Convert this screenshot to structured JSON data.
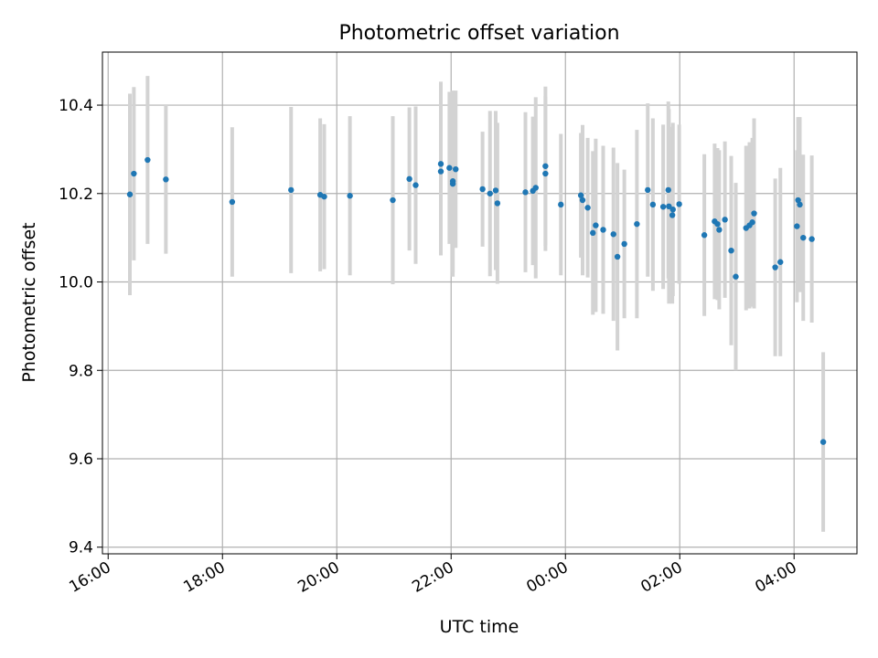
{
  "chart_data": {
    "type": "scatter",
    "title": "Photometric offset variation",
    "xlabel": "UTC time",
    "ylabel": "Photometric offset",
    "x_unit": "hours",
    "xlim": [
      -8.1,
      5.1
    ],
    "ylim": [
      9.385,
      10.52
    ],
    "xticks": [
      {
        "value": -8,
        "label": "16:00"
      },
      {
        "value": -6,
        "label": "18:00"
      },
      {
        "value": -4,
        "label": "20:00"
      },
      {
        "value": -2,
        "label": "22:00"
      },
      {
        "value": 0,
        "label": "00:00"
      },
      {
        "value": 2,
        "label": "02:00"
      },
      {
        "value": 4,
        "label": "04:00"
      }
    ],
    "yticks": [
      {
        "value": 9.4,
        "label": "9.4"
      },
      {
        "value": 9.6,
        "label": "9.6"
      },
      {
        "value": 9.8,
        "label": "9.8"
      },
      {
        "value": 10.0,
        "label": "10.0"
      },
      {
        "value": 10.2,
        "label": "10.2"
      },
      {
        "value": 10.4,
        "label": "10.4"
      }
    ],
    "grid": true,
    "colors": {
      "point": "#1f77b4",
      "errorbar": "#d3d3d3",
      "grid": "#b0b0b0"
    },
    "points": [
      {
        "x": -7.62,
        "y": 10.198,
        "err": 0.228
      },
      {
        "x": -7.55,
        "y": 10.245,
        "err": 0.196
      },
      {
        "x": -7.31,
        "y": 10.276,
        "err": 0.19
      },
      {
        "x": -6.99,
        "y": 10.232,
        "err": 0.168
      },
      {
        "x": -5.83,
        "y": 10.181,
        "err": 0.169
      },
      {
        "x": -4.8,
        "y": 10.208,
        "err": 0.188
      },
      {
        "x": -4.29,
        "y": 10.197,
        "err": 0.173
      },
      {
        "x": -4.22,
        "y": 10.193,
        "err": 0.164
      },
      {
        "x": -3.77,
        "y": 10.195,
        "err": 0.18
      },
      {
        "x": -3.02,
        "y": 10.185,
        "err": 0.19
      },
      {
        "x": -2.73,
        "y": 10.233,
        "err": 0.162
      },
      {
        "x": -2.62,
        "y": 10.219,
        "err": 0.178
      },
      {
        "x": -2.18,
        "y": 10.267,
        "err": 0.186
      },
      {
        "x": -2.18,
        "y": 10.25,
        "err": 0.19
      },
      {
        "x": -2.03,
        "y": 10.258,
        "err": 0.172
      },
      {
        "x": -1.97,
        "y": 10.228,
        "err": 0.205
      },
      {
        "x": -1.97,
        "y": 10.222,
        "err": 0.21
      },
      {
        "x": -1.92,
        "y": 10.255,
        "err": 0.178
      },
      {
        "x": -1.45,
        "y": 10.21,
        "err": 0.13
      },
      {
        "x": -1.32,
        "y": 10.2,
        "err": 0.187
      },
      {
        "x": -1.22,
        "y": 10.207,
        "err": 0.18
      },
      {
        "x": -1.19,
        "y": 10.178,
        "err": 0.182
      },
      {
        "x": -0.7,
        "y": 10.203,
        "err": 0.181
      },
      {
        "x": -0.57,
        "y": 10.206,
        "err": 0.168
      },
      {
        "x": -0.52,
        "y": 10.213,
        "err": 0.205
      },
      {
        "x": -0.35,
        "y": 10.262,
        "err": 0.18
      },
      {
        "x": -0.35,
        "y": 10.245,
        "err": 0.175
      },
      {
        "x": -0.08,
        "y": 10.175,
        "err": 0.16
      },
      {
        "x": 0.27,
        "y": 10.196,
        "err": 0.141
      },
      {
        "x": 0.3,
        "y": 10.185,
        "err": 0.17
      },
      {
        "x": 0.39,
        "y": 10.168,
        "err": 0.158
      },
      {
        "x": 0.48,
        "y": 10.111,
        "err": 0.185
      },
      {
        "x": 0.53,
        "y": 10.128,
        "err": 0.196
      },
      {
        "x": 0.66,
        "y": 10.118,
        "err": 0.19
      },
      {
        "x": 0.84,
        "y": 10.108,
        "err": 0.196
      },
      {
        "x": 0.91,
        "y": 10.057,
        "err": 0.212
      },
      {
        "x": 1.03,
        "y": 10.086,
        "err": 0.168
      },
      {
        "x": 1.25,
        "y": 10.131,
        "err": 0.213
      },
      {
        "x": 1.44,
        "y": 10.208,
        "err": 0.196
      },
      {
        "x": 1.53,
        "y": 10.175,
        "err": 0.195
      },
      {
        "x": 1.71,
        "y": 10.17,
        "err": 0.186
      },
      {
        "x": 1.8,
        "y": 10.208,
        "err": 0.2
      },
      {
        "x": 1.81,
        "y": 10.171,
        "err": 0.22
      },
      {
        "x": 1.87,
        "y": 10.151,
        "err": 0.2
      },
      {
        "x": 1.88,
        "y": 10.164,
        "err": 0.196
      },
      {
        "x": 1.99,
        "y": 10.176,
        "err": 0.18
      },
      {
        "x": 2.43,
        "y": 10.106,
        "err": 0.183
      },
      {
        "x": 2.61,
        "y": 10.137,
        "err": 0.176
      },
      {
        "x": 2.66,
        "y": 10.131,
        "err": 0.172
      },
      {
        "x": 2.69,
        "y": 10.118,
        "err": 0.18
      },
      {
        "x": 2.79,
        "y": 10.141,
        "err": 0.177
      },
      {
        "x": 2.9,
        "y": 10.071,
        "err": 0.214
      },
      {
        "x": 2.98,
        "y": 10.012,
        "err": 0.212
      },
      {
        "x": 3.16,
        "y": 10.122,
        "err": 0.186
      },
      {
        "x": 3.22,
        "y": 10.128,
        "err": 0.188
      },
      {
        "x": 3.27,
        "y": 10.135,
        "err": 0.191
      },
      {
        "x": 3.3,
        "y": 10.155,
        "err": 0.215
      },
      {
        "x": 3.67,
        "y": 10.033,
        "err": 0.201
      },
      {
        "x": 3.76,
        "y": 10.045,
        "err": 0.213
      },
      {
        "x": 4.05,
        "y": 10.126,
        "err": 0.172
      },
      {
        "x": 4.07,
        "y": 10.185,
        "err": 0.188
      },
      {
        "x": 4.1,
        "y": 10.175,
        "err": 0.198
      },
      {
        "x": 4.16,
        "y": 10.1,
        "err": 0.188
      },
      {
        "x": 4.31,
        "y": 10.097,
        "err": 0.189
      },
      {
        "x": 4.51,
        "y": 9.638,
        "err": 0.203
      }
    ]
  }
}
